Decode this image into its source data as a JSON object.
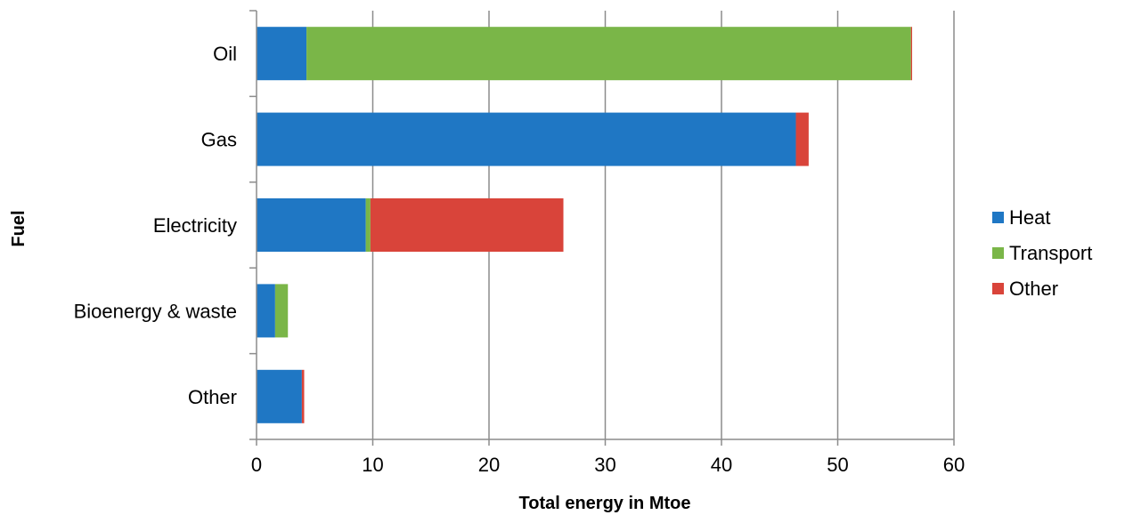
{
  "chart_data": {
    "type": "bar",
    "orientation": "horizontal",
    "stacked": true,
    "categories": [
      "Oil",
      "Gas",
      "Electricity",
      "Bioenergy & waste",
      "Other"
    ],
    "series": [
      {
        "name": "Heat",
        "values": [
          4.3,
          46.4,
          9.4,
          1.6,
          3.9
        ],
        "color": "#1f77c4"
      },
      {
        "name": "Transport",
        "values": [
          52.0,
          0.0,
          0.4,
          1.1,
          0.0
        ],
        "color": "#7ab648"
      },
      {
        "name": "Other",
        "values": [
          0.1,
          1.1,
          16.6,
          0.0,
          0.2
        ],
        "color": "#d9443a"
      }
    ],
    "x_ticks": [
      "0",
      "10",
      "20",
      "30",
      "40",
      "50",
      "60"
    ],
    "xlim": [
      0,
      60
    ],
    "xlabel": "Total energy in Mtoe",
    "ylabel": "Fuel",
    "grid": "vertical",
    "legend_position": "right"
  }
}
